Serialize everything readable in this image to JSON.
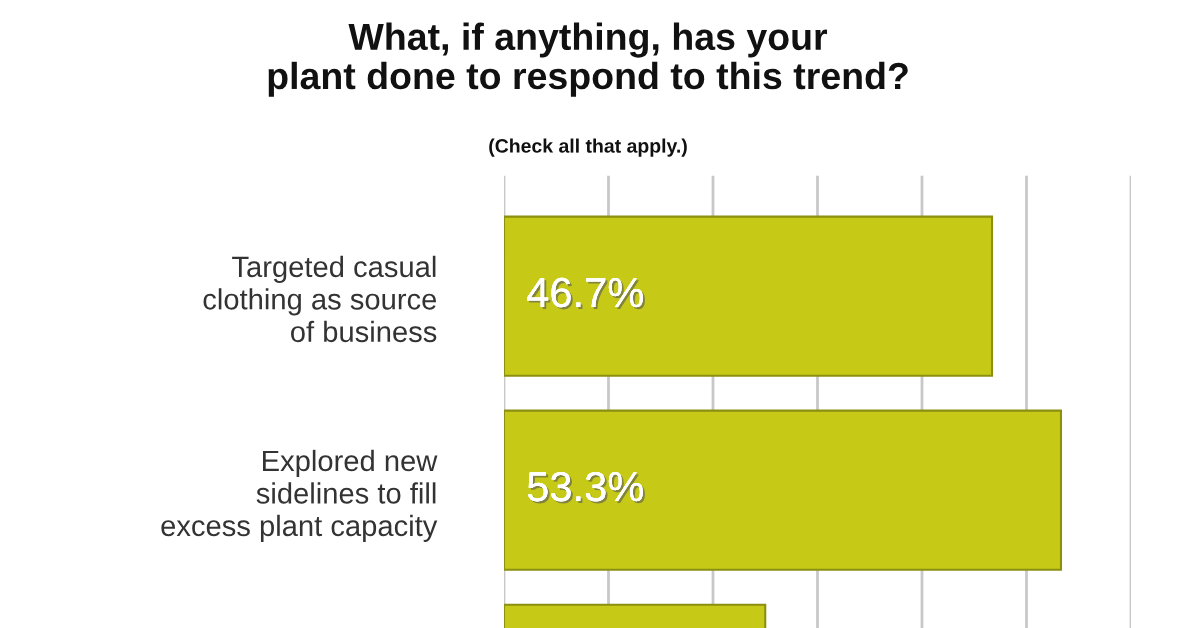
{
  "chart_data": {
    "type": "bar",
    "orientation": "horizontal",
    "title": "What, if anything, has your\nplant done to respond to this trend?",
    "subtitle": "(Check all that apply.)",
    "categories": [
      "Targeted casual\nclothing as source\nof business",
      "Explored new\nsidelines to fill\nexcess plant capacity",
      null
    ],
    "values": [
      46.7,
      53.3,
      25
    ],
    "value_labels": [
      "46.7%",
      "53.3%",
      null
    ],
    "color": "#c6ca17",
    "xlim": [
      0,
      60
    ],
    "xticks": [
      {
        "value": 0,
        "label": null
      },
      {
        "value": 10,
        "label": null
      },
      {
        "value": 20,
        "label": null
      },
      {
        "value": 30,
        "label": null
      },
      {
        "value": 40,
        "label": null
      },
      {
        "value": 50,
        "label": null
      },
      {
        "value": 60,
        "label": null
      }
    ],
    "grid": "x",
    "tick_labels": "y"
  }
}
